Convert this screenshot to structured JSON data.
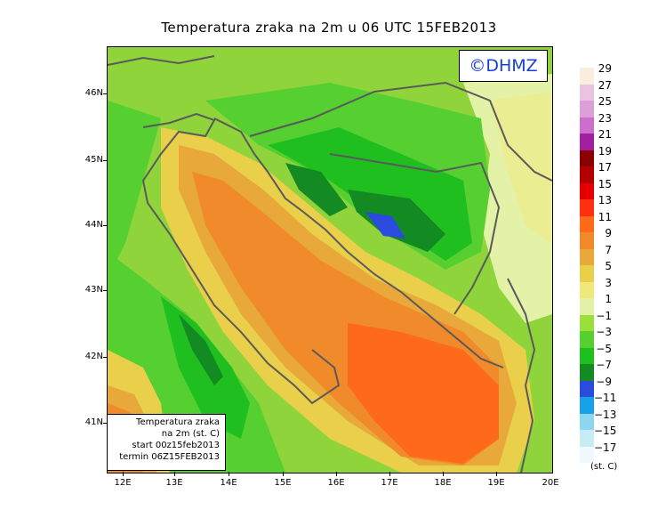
{
  "title": "Temperatura zraka na 2m u 06 UTC 15FEB2013",
  "logo": "©DHMZ",
  "info_box": {
    "line1": "Temperatura zraka",
    "line2": "na 2m (st. C)",
    "line3": "start 00z15feb2013",
    "line4": "termin 06Z15FEB2013"
  },
  "lat_labels": [
    "46N",
    "45N",
    "44N",
    "43N",
    "42N",
    "41N"
  ],
  "lon_labels": [
    "12E",
    "13E",
    "14E",
    "15E",
    "16E",
    "17E",
    "18E",
    "19E",
    "20E"
  ],
  "legend": {
    "unit": "(st. C)",
    "labels": [
      "29",
      "27",
      "25",
      "23",
      "21",
      "19",
      "17",
      "15",
      "13",
      "11",
      "9",
      "7",
      "5",
      "3",
      "1",
      "−1",
      "−3",
      "−5",
      "−7",
      "−9",
      "−11",
      "−13",
      "−15",
      "−17"
    ],
    "colors": [
      "#fbeee0",
      "#e8c4e0",
      "#dd9fd8",
      "#cc6fcc",
      "#a020a0",
      "#8b0000",
      "#b50000",
      "#e60000",
      "#ff3010",
      "#ff6a1a",
      "#f08a2a",
      "#e8a83a",
      "#e9cf4a",
      "#efe87a",
      "#e4f2a8",
      "#9ae03c",
      "#56cf30",
      "#1fbf20",
      "#148a22",
      "#2a4bdd",
      "#1aa0e6",
      "#8ed6ee",
      "#c8ecf6",
      "#eefaff"
    ]
  }
}
